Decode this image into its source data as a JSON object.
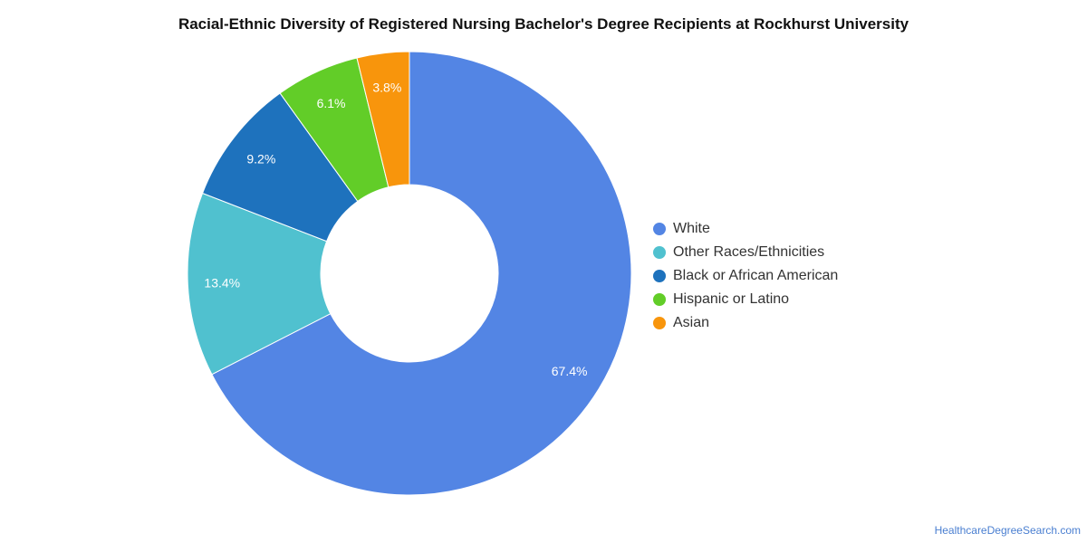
{
  "chart_data": {
    "type": "pie",
    "donut": true,
    "title": "Racial-Ethnic Diversity of Registered Nursing Bachelor's Degree Recipients at Rockhurst University",
    "slices": [
      {
        "name": "White",
        "value": 67.4,
        "label": "67.4%",
        "color": "#5385e4"
      },
      {
        "name": "Other Races/Ethnicities",
        "value": 13.4,
        "label": "13.4%",
        "color": "#50c1cf"
      },
      {
        "name": "Black or African American",
        "value": 9.2,
        "label": "9.2%",
        "color": "#1e72bd"
      },
      {
        "name": "Hispanic or Latino",
        "value": 6.1,
        "label": "6.1%",
        "color": "#62cd28"
      },
      {
        "name": "Asian",
        "value": 3.8,
        "label": "3.8%",
        "color": "#f8950c"
      }
    ],
    "legend_position": "right"
  },
  "footer": {
    "source": "HealthcareDegreeSearch.com"
  }
}
